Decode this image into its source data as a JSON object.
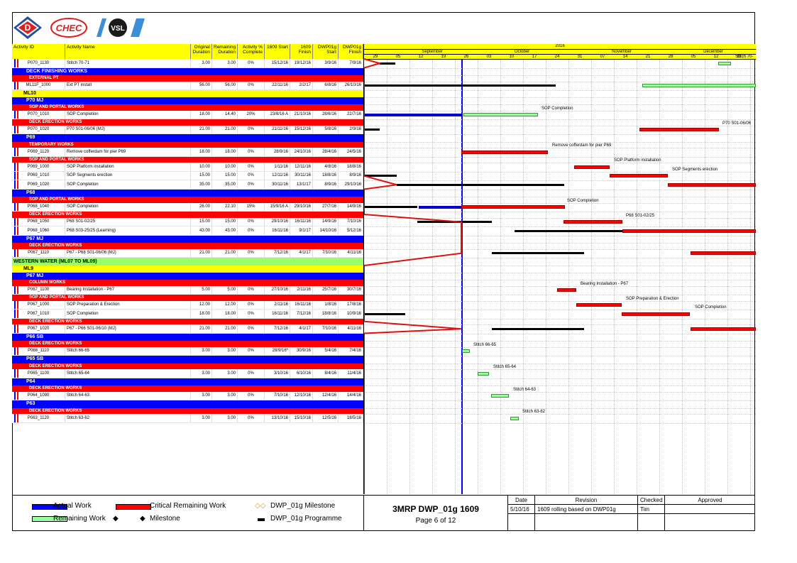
{
  "logos": [
    "D",
    "CHEC",
    "VSL"
  ],
  "columns": [
    "Activity ID",
    "Activity Name",
    "Original Duration",
    "Remaining Duration",
    "Activity % Complete",
    "1609 Start",
    "1609 Finish",
    "DWP01g Start",
    "DWP01g Finish"
  ],
  "rows": [
    {
      "type": "act",
      "id": "P070_1130",
      "name": "Stitch 70-71",
      "od": "3.00",
      "rd": "3.00",
      "pc": "0%",
      "s": "15/12/16",
      "f": "19/12/16",
      "ds": "3/9/16",
      "df": "7/9/16"
    },
    {
      "type": "lvl2",
      "name": "DECK FINISHING WORKS"
    },
    {
      "type": "lvl3",
      "name": "EXTERNAL PT"
    },
    {
      "type": "act",
      "id": "ML11F_1000",
      "name": "Ext PT install",
      "od": "56.00",
      "rd": "56.00",
      "pc": "0%",
      "s": "22/11/16",
      "f": "2/2/17",
      "ds": "6/8/16",
      "df": "26/10/16"
    },
    {
      "type": "lvl1",
      "name": "ML10"
    },
    {
      "type": "lvl2",
      "name": "P70 MJ"
    },
    {
      "type": "lvl3",
      "name": "SOP AND PORTAL WORKS"
    },
    {
      "type": "act",
      "id": "P070_1010",
      "name": "SOP Completion",
      "od": "18.00",
      "rd": "14.40",
      "pc": "20%",
      "s": "23/8/16 A",
      "f": "21/10/16",
      "ds": "28/6/16",
      "df": "22/7/16"
    },
    {
      "type": "lvl3",
      "name": "DECK ERECTION WORKS"
    },
    {
      "type": "act",
      "id": "P070_1020",
      "name": "P70 S01-06/06 (MJ)",
      "od": "21.00",
      "rd": "21.00",
      "pc": "0%",
      "s": "21/11/16",
      "f": "15/12/16",
      "ds": "5/8/16",
      "df": "2/9/16"
    },
    {
      "type": "lvl2",
      "name": "P69"
    },
    {
      "type": "lvl3",
      "name": "TEMPORARY WORKS"
    },
    {
      "type": "act",
      "id": "P069_1120",
      "name": "Remove cofferdam for pier P69",
      "od": "18.00",
      "rd": "18.00",
      "pc": "0%",
      "s": "28/9/16",
      "f": "24/10/16",
      "ds": "28/4/16",
      "df": "24/5/16"
    },
    {
      "type": "lvl3",
      "name": "SOP AND PORTAL WORKS"
    },
    {
      "type": "act",
      "id": "P069_1000",
      "name": "SOP Platform installation",
      "od": "10.00",
      "rd": "10.00",
      "pc": "0%",
      "s": "1/11/16",
      "f": "12/11/16",
      "ds": "4/8/16",
      "df": "18/8/16"
    },
    {
      "type": "act",
      "id": "P069_1010",
      "name": "SOP Segments erection",
      "od": "15.00",
      "rd": "15.00",
      "pc": "0%",
      "s": "12/11/16",
      "f": "30/11/16",
      "ds": "18/8/16",
      "df": "8/9/16"
    },
    {
      "type": "act",
      "id": "P069_1020",
      "name": "SOP Completion",
      "od": "35.00",
      "rd": "35.00",
      "pc": "0%",
      "s": "30/11/16",
      "f": "13/1/17",
      "ds": "8/9/16",
      "df": "29/10/16"
    },
    {
      "type": "lvl2",
      "name": "P68"
    },
    {
      "type": "lvl3",
      "name": "SOP AND PORTAL WORKS"
    },
    {
      "type": "act",
      "id": "P068_1040",
      "name": "SOP Completion",
      "od": "26.00",
      "rd": "22.10",
      "pc": "15%",
      "s": "15/9/16 A",
      "f": "29/10/16",
      "ds": "27/7/16",
      "df": "14/9/16"
    },
    {
      "type": "lvl3",
      "name": "DECK ERECTION WORKS"
    },
    {
      "type": "act",
      "id": "P068_1050",
      "name": "P68 S01-02/25",
      "od": "15.00",
      "rd": "15.00",
      "pc": "0%",
      "s": "29/10/16",
      "f": "16/11/16",
      "ds": "14/9/16",
      "df": "7/10/16"
    },
    {
      "type": "act",
      "id": "P068_1060",
      "name": "P68 S03-25/25 (Learning)",
      "od": "43.00",
      "rd": "43.00",
      "pc": "0%",
      "s": "16/11/16",
      "f": "9/1/17",
      "ds": "14/10/16",
      "df": "5/12/16"
    },
    {
      "type": "lvl2",
      "name": "P67 MJ"
    },
    {
      "type": "lvl3",
      "name": "DECK ERECTION WORKS"
    },
    {
      "type": "act",
      "id": "P067_1110",
      "name": "P67 - P68 S01-06/06 (MJ)",
      "od": "21.00",
      "rd": "21.00",
      "pc": "0%",
      "s": "7/12/16",
      "f": "4/1/17",
      "ds": "7/10/16",
      "df": "4/11/16"
    },
    {
      "type": "lvl0",
      "name": "WESTERN WATER (ML07 TO ML09)"
    },
    {
      "type": "lvl1",
      "name": "ML9"
    },
    {
      "type": "lvl2",
      "name": "P67 MJ"
    },
    {
      "type": "lvl3",
      "name": "COLUMN WORKS"
    },
    {
      "type": "act",
      "id": "P067_1100",
      "name": "Bearing Installation - P67",
      "od": "5.00",
      "rd": "5.00",
      "pc": "0%",
      "s": "27/10/16",
      "f": "2/11/16",
      "ds": "25/7/16",
      "df": "30/7/16"
    },
    {
      "type": "lvl3",
      "name": "SOP AND PORTAL WORKS"
    },
    {
      "type": "act",
      "id": "P067_1000",
      "name": "SOP Preparation & Erection",
      "od": "12.00",
      "rd": "12.00",
      "pc": "0%",
      "s": "2/11/16",
      "f": "16/11/16",
      "ds": "1/8/16",
      "df": "17/8/16"
    },
    {
      "type": "act",
      "id": "P067_1010",
      "name": "SOP Completion",
      "od": "18.00",
      "rd": "18.00",
      "pc": "0%",
      "s": "16/11/16",
      "f": "7/12/16",
      "ds": "18/8/16",
      "df": "10/9/16"
    },
    {
      "type": "lvl3",
      "name": "DECK ERECTION WORKS"
    },
    {
      "type": "act",
      "id": "P067_1020",
      "name": "P67 - P66 S01-06/10 (MJ)",
      "od": "21.00",
      "rd": "21.00",
      "pc": "0%",
      "s": "7/12/16",
      "f": "4/1/17",
      "ds": "7/10/16",
      "df": "4/11/16"
    },
    {
      "type": "lvl2",
      "name": "P66 SB"
    },
    {
      "type": "lvl3",
      "name": "DECK ERECTION WORKS"
    },
    {
      "type": "act",
      "id": "P066_1110",
      "name": "Stitch 66-65",
      "od": "3.00",
      "rd": "3.00",
      "pc": "0%",
      "s": "28/9/16*",
      "f": "30/9/16",
      "ds": "5/4/16",
      "df": "7/4/16"
    },
    {
      "type": "lvl2",
      "name": "P65 SB"
    },
    {
      "type": "lvl3",
      "name": "DECK ERECTION WORKS"
    },
    {
      "type": "act",
      "id": "P065_1100",
      "name": "Stitch 65-64",
      "od": "3.00",
      "rd": "3.00",
      "pc": "0%",
      "s": "3/10/16",
      "f": "6/10/16",
      "ds": "8/4/16",
      "df": "11/4/16"
    },
    {
      "type": "lvl2",
      "name": "P64"
    },
    {
      "type": "lvl3",
      "name": "DECK ERECTION WORKS"
    },
    {
      "type": "act",
      "id": "P064_1090",
      "name": "Stitch 64-63",
      "od": "3.00",
      "rd": "3.00",
      "pc": "0%",
      "s": "7/10/16",
      "f": "12/10/16",
      "ds": "12/4/16",
      "df": "14/4/16"
    },
    {
      "type": "lvl2",
      "name": "P63"
    },
    {
      "type": "lvl3",
      "name": "DECK ERECTION WORKS"
    },
    {
      "type": "act",
      "id": "P063_1120",
      "name": "Stitch 63-62",
      "od": "3.00",
      "rd": "3.00",
      "pc": "0%",
      "s": "13/10/16",
      "f": "15/10/16",
      "ds": "12/5/16",
      "df": "18/5/16"
    }
  ],
  "timescale": {
    "year": "2016",
    "months": [
      "September",
      "October",
      "November",
      "December"
    ],
    "weeks": [
      "29",
      "05",
      "12",
      "19",
      "26",
      "03",
      "10",
      "17",
      "24",
      "31",
      "07",
      "14",
      "21",
      "28",
      "05",
      "12",
      "19"
    ]
  },
  "bar_labels": {
    "stitch70": "Stitch 70-",
    "sop_p70": "SOP Completion",
    "p70": "P70 S01-06/06",
    "coffer": "Remove cofferdam for pier P69",
    "sop_plat": "SOP Platform installation",
    "sop_seg": "SOP Segments erection",
    "sop_p68": "SOP Completion",
    "p68": "P68 S01-02/25",
    "bearing": "Bearing Installation - P67",
    "sop_prep": "SOP Preparation & Erection",
    "sop_p67": "SOP Completion",
    "s6665": "Stitch 66-65",
    "s6564": "Stitch 65-64",
    "s6463": "Stitch 64-63",
    "s6362": "Stitch 63-62"
  },
  "legend": {
    "actual": "Actual Work",
    "critical": "Critical Remaining Work",
    "milestone_dwp": "DWP_01g Milestone",
    "remaining": "Remaining Work",
    "milestone": "Milestone",
    "programme": "DWP_01g Programme"
  },
  "title_block": {
    "title": "3MRP DWP_01g 1609",
    "page": "Page 6 of 12"
  },
  "revision": {
    "headers": [
      "Date",
      "Revision",
      "Checked",
      "Approved"
    ],
    "date": "5/10/16",
    "text": "1609 rolling based on DWP01g",
    "checked": "Tim",
    "approved": ""
  },
  "colors": {
    "yellow": "#ffff00",
    "blue": "#0000ff",
    "red": "#ff0000",
    "green": "#99ff66",
    "remaining": "#99ff99"
  }
}
